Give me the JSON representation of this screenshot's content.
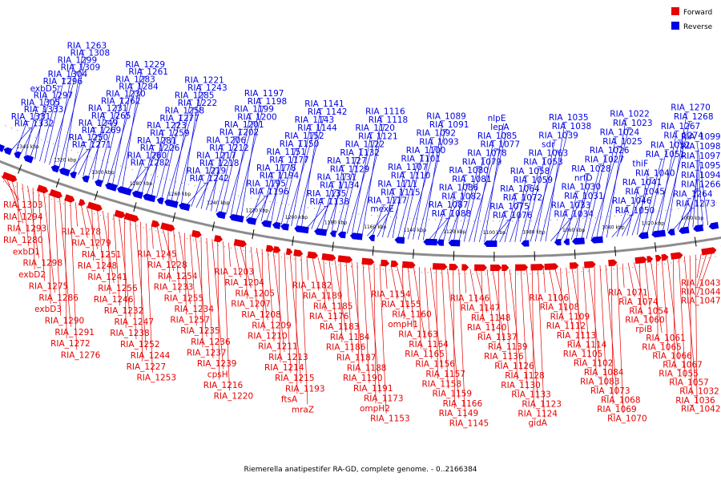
{
  "caption": "Riemerella anatipestifer RA-GD, complete genome. - 0..2166384",
  "legend": [
    {
      "label": "Forward",
      "color": "#e60000"
    },
    {
      "label": "Reverse",
      "color": "#0000e6"
    }
  ],
  "colors": {
    "forward": "#e60000",
    "reverse": "#0000e6",
    "backbone": "#8c8c8c"
  },
  "ticks": [
    "1340 kbp",
    "1320 kbp",
    "1300 kbp",
    "1280 kbp",
    "1260 kbp",
    "1240 kbp",
    "1220 kbp",
    "1200 kbp",
    "1180 kbp",
    "1160 kbp",
    "1140 kbp",
    "1120 kbp",
    "1100 kbp",
    "1080 kbp",
    "1060 kbp",
    "1040 kbp",
    "1020 kbp",
    "1000 kbp"
  ],
  "reverse_labels": [
    "RIA_1332",
    "RIA_1331",
    "RIA_1333",
    "RIA_1305",
    "RIA_1297",
    "exbD5",
    "RIA_1296",
    "RIA_1304",
    "RIA_1309",
    "RIA_1299",
    "RIA_1308",
    "RIA_1263",
    "RIA_1271",
    "RIA_1250",
    "RIA_1269",
    "RIA_1249",
    "RIA_1265",
    "RIA_1231",
    "RIA_1262",
    "RIA_1230",
    "RIA_1284",
    "RIA_1283",
    "RIA_1261",
    "RIA_1229",
    "RIA_1282",
    "RIA_1260",
    "RIA_1226",
    "RIA_1281",
    "RIA_1259",
    "RIA_1223",
    "RIA_1277",
    "RIA_1258",
    "RIA_1222",
    "RIA_1285",
    "RIA_1243",
    "RIA_1221",
    "RIA_1242",
    "RIA_1219",
    "RIA_1218",
    "RIA_1217",
    "RIA_1212",
    "RIA_1206",
    "RIA_1202",
    "RIA_1201",
    "RIA_1200",
    "RIA_1199",
    "RIA_1198",
    "RIA_1197",
    "RIA_1196",
    "RIA_1195",
    "RIA_1194",
    "RIA_1178",
    "RIA_1177",
    "RIA_1151",
    "RIA_1150",
    "RIA_1152",
    "RIA_1144",
    "RIA_1143",
    "RIA_1142",
    "RIA_1141",
    "RIA_1138",
    "RIA_1135",
    "RIA_1134",
    "RIA_1131",
    "RIA_1129",
    "RIA_1127",
    "RIA_1132",
    "RIA_1122",
    "RIA_1121",
    "RIA_1120",
    "RIA_1118",
    "RIA_1116",
    "mexE",
    "RIA_1117",
    "RIA_1115",
    "RIA_1111",
    "RIA_1110",
    "RIA_1107",
    "RIA_1101",
    "RIA_1100",
    "RIA_1093",
    "RIA_1092",
    "RIA_1091",
    "RIA_1089",
    "RIA_1088",
    "RIA_1087",
    "RIA_1082",
    "RIA_1086",
    "RIA_1081",
    "RIA_1080",
    "RIA_1079",
    "RIA_1078",
    "RIA_1077",
    "RIA_1085",
    "lepA",
    "nlpE",
    "RIA_1076",
    "RIA_1075",
    "RIA_1072",
    "RIA_1064",
    "RIA_1059",
    "RIA_1058",
    "RIA_1053",
    "RIA_1063",
    "sdr",
    "RIA_1039",
    "RIA_1038",
    "RIA_1035",
    "RIA_1034",
    "RIA_1033",
    "RIA_1031",
    "RIA_1030",
    "nrfD",
    "RIA_1028",
    "RIA_1027",
    "RIA_1026",
    "RIA_1025",
    "RIA_1024",
    "RIA_1023",
    "RIA_1022",
    "RIA_1050",
    "RIA_1046",
    "RIA_1045",
    "RIA_1041",
    "RIA_1040",
    "thiF",
    "RIA_1051",
    "RIA_1052",
    "RIA_1274",
    "RIA_1267",
    "RIA_1268",
    "RIA_1270",
    "RIA_1273",
    "RIA_1264",
    "RIA_1266",
    "RIA_1094",
    "RIA_1095",
    "RIA_1097",
    "RIA_1098",
    "RIA_1099"
  ],
  "forward_labels": [
    "RIA_1303",
    "RIA_1294",
    "RIA_1293",
    "RIA_1280",
    "exbD1",
    "RIA_1298",
    "exbD2",
    "RIA_1275",
    "RIA_1286",
    "exbD3",
    "RIA_1290",
    "RIA_1291",
    "RIA_1272",
    "RIA_1276",
    "RIA_1278",
    "RIA_1279",
    "RIA_1251",
    "RIA_1248",
    "RIA_1241",
    "RIA_1256",
    "RIA_1246",
    "RIA_1232",
    "RIA_1247",
    "RIA_1238",
    "RIA_1252",
    "RIA_1244",
    "RIA_1227",
    "RIA_1253",
    "RIA_1245",
    "RIA_1228",
    "RIA_1254",
    "RIA_1233",
    "RIA_1255",
    "RIA_1234",
    "RIA_1257",
    "RIA_1235",
    "RIA_1236",
    "RIA_1237",
    "RIA_1239",
    "cpsH",
    "RIA_1216",
    "RIA_1220",
    "RIA_1203",
    "RIA_1204",
    "RIA_1205",
    "RIA_1207",
    "RIA_1208",
    "RIA_1209",
    "RIA_1210",
    "RIA_1211",
    "RIA_1213",
    "RIA_1214",
    "RIA_1215",
    "RIA_1193",
    "ftsA",
    "mraZ",
    "RIA_1182",
    "RIA_1189",
    "RIA_1185",
    "RIA_1176",
    "RIA_1183",
    "RIA_1184",
    "RIA_1186",
    "RIA_1187",
    "RIA_1188",
    "RIA_1190",
    "RIA_1191",
    "RIA_1173",
    "ompH2",
    "RIA_1153",
    "RIA_1154",
    "RIA_1155",
    "RIA_1160",
    "ompH1",
    "RIA_1163",
    "RIA_1164",
    "RIA_1165",
    "RIA_1156",
    "RIA_1157",
    "RIA_1158",
    "RIA_1159",
    "RIA_1166",
    "RIA_1149",
    "RIA_1145",
    "RIA_1146",
    "RIA_1147",
    "RIA_1148",
    "RIA_1140",
    "RIA_1137",
    "RIA_1139",
    "RIA_1136",
    "RIA_1126",
    "RIA_1128",
    "RIA_1130",
    "RIA_1133",
    "RIA_1123",
    "RIA_1124",
    "gidA",
    "RIA_1106",
    "RIA_1108",
    "RIA_1109",
    "RIA_1112",
    "RIA_1113",
    "RIA_1114",
    "RIA_1105",
    "RIA_1102",
    "RIA_1084",
    "RIA_1083",
    "RIA_1073",
    "RIA_1068",
    "RIA_1069",
    "RIA_1070",
    "RIA_1071",
    "RIA_1074",
    "RIA_1054",
    "RIA_1060",
    "rpiB",
    "RIA_1061",
    "RIA_1065",
    "RIA_1066",
    "RIA_1067",
    "RIA_1055",
    "RIA_1057",
    "RIA_1032",
    "RIA_1036",
    "RIA_1042",
    "RIA_1043",
    "RIA_1044",
    "RIA_1047"
  ]
}
